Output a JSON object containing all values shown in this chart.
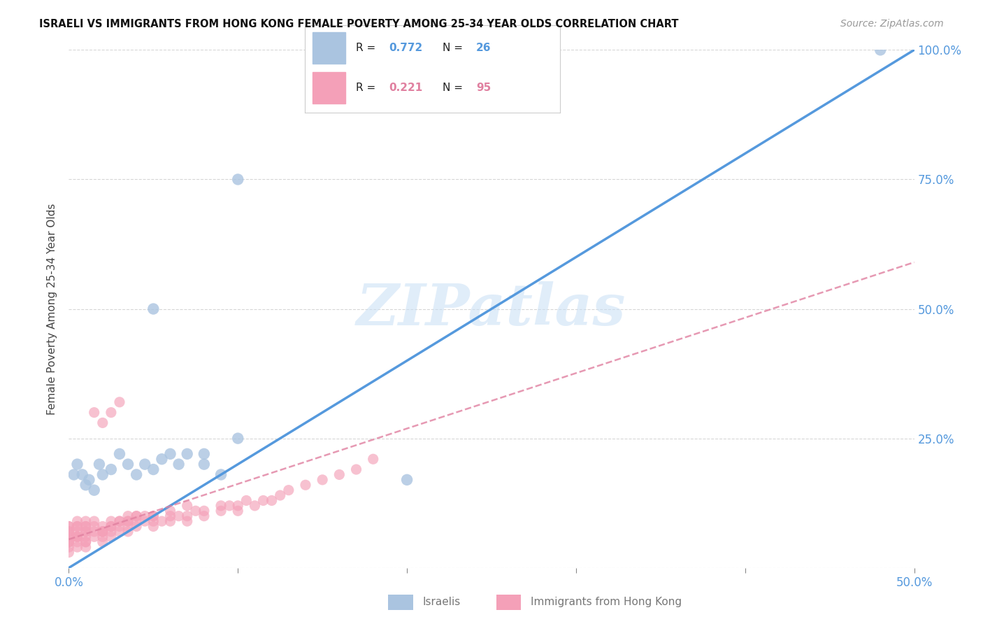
{
  "title": "ISRAELI VS IMMIGRANTS FROM HONG KONG FEMALE POVERTY AMONG 25-34 YEAR OLDS CORRELATION CHART",
  "source": "Source: ZipAtlas.com",
  "ylabel": "Female Poverty Among 25-34 Year Olds",
  "xlim": [
    0.0,
    0.5
  ],
  "ylim": [
    0.0,
    1.0
  ],
  "xticks": [
    0.0,
    0.1,
    0.2,
    0.3,
    0.4,
    0.5
  ],
  "xtick_labels_show": [
    "0.0%",
    "",
    "",
    "",
    "",
    "50.0%"
  ],
  "ytick_labels_right": [
    "25.0%",
    "50.0%",
    "75.0%",
    "100.0%"
  ],
  "yticks_right": [
    0.25,
    0.5,
    0.75,
    1.0
  ],
  "yticks_all": [
    0.0,
    0.25,
    0.5,
    0.75,
    1.0
  ],
  "israeli_R": 0.772,
  "israeli_N": 26,
  "hk_R": 0.221,
  "hk_N": 95,
  "israeli_color": "#aac4e0",
  "hk_color": "#f4a0b8",
  "israeli_line_color": "#5599dd",
  "hk_line_color": "#e080a0",
  "watermark_text": "ZIPatlas",
  "background_color": "#ffffff",
  "legend_box_color": "#aac4e0",
  "legend_box_color2": "#f4a0b8",
  "israeli_points_x": [
    0.003,
    0.005,
    0.008,
    0.01,
    0.012,
    0.015,
    0.018,
    0.02,
    0.025,
    0.03,
    0.035,
    0.04,
    0.045,
    0.05,
    0.055,
    0.06,
    0.065,
    0.07,
    0.08,
    0.09,
    0.1,
    0.05,
    0.08,
    0.1,
    0.2,
    0.48
  ],
  "israeli_points_y": [
    0.18,
    0.2,
    0.18,
    0.16,
    0.17,
    0.15,
    0.2,
    0.18,
    0.19,
    0.22,
    0.2,
    0.18,
    0.2,
    0.19,
    0.21,
    0.22,
    0.2,
    0.22,
    0.2,
    0.18,
    0.25,
    0.5,
    0.22,
    0.75,
    0.17,
    1.0
  ],
  "hk_points_x": [
    0.0,
    0.0,
    0.0,
    0.0,
    0.0,
    0.0,
    0.0,
    0.0,
    0.0,
    0.0,
    0.005,
    0.005,
    0.005,
    0.005,
    0.005,
    0.005,
    0.005,
    0.01,
    0.01,
    0.01,
    0.01,
    0.01,
    0.01,
    0.01,
    0.01,
    0.015,
    0.015,
    0.015,
    0.015,
    0.015,
    0.02,
    0.02,
    0.02,
    0.02,
    0.02,
    0.02,
    0.025,
    0.025,
    0.025,
    0.025,
    0.025,
    0.03,
    0.03,
    0.03,
    0.03,
    0.035,
    0.035,
    0.035,
    0.035,
    0.04,
    0.04,
    0.04,
    0.045,
    0.045,
    0.05,
    0.05,
    0.05,
    0.055,
    0.06,
    0.06,
    0.065,
    0.07,
    0.07,
    0.075,
    0.08,
    0.08,
    0.09,
    0.09,
    0.095,
    0.1,
    0.1,
    0.105,
    0.11,
    0.115,
    0.12,
    0.125,
    0.13,
    0.14,
    0.15,
    0.16,
    0.17,
    0.18,
    0.0,
    0.0,
    0.005,
    0.005,
    0.01,
    0.02,
    0.025,
    0.03,
    0.035,
    0.04,
    0.05,
    0.06,
    0.07
  ],
  "hk_points_y": [
    0.03,
    0.04,
    0.05,
    0.05,
    0.06,
    0.06,
    0.07,
    0.07,
    0.08,
    0.08,
    0.04,
    0.05,
    0.06,
    0.06,
    0.07,
    0.08,
    0.09,
    0.04,
    0.05,
    0.06,
    0.07,
    0.07,
    0.08,
    0.08,
    0.09,
    0.06,
    0.07,
    0.08,
    0.09,
    0.3,
    0.05,
    0.06,
    0.07,
    0.07,
    0.08,
    0.28,
    0.06,
    0.07,
    0.08,
    0.09,
    0.3,
    0.07,
    0.08,
    0.09,
    0.32,
    0.07,
    0.08,
    0.09,
    0.1,
    0.08,
    0.09,
    0.1,
    0.09,
    0.1,
    0.08,
    0.09,
    0.1,
    0.09,
    0.09,
    0.1,
    0.1,
    0.09,
    0.1,
    0.11,
    0.1,
    0.11,
    0.11,
    0.12,
    0.12,
    0.11,
    0.12,
    0.13,
    0.12,
    0.13,
    0.13,
    0.14,
    0.15,
    0.16,
    0.17,
    0.18,
    0.19,
    0.21,
    0.05,
    0.07,
    0.06,
    0.08,
    0.05,
    0.07,
    0.08,
    0.09,
    0.09,
    0.1,
    0.1,
    0.11,
    0.12
  ],
  "isr_line_x0": 0.0,
  "isr_line_y0": 0.0,
  "isr_line_x1": 0.5,
  "isr_line_y1": 1.0,
  "hk_line_x0": 0.0,
  "hk_line_y0": 0.055,
  "hk_line_x1": 0.5,
  "hk_line_y1": 0.59
}
